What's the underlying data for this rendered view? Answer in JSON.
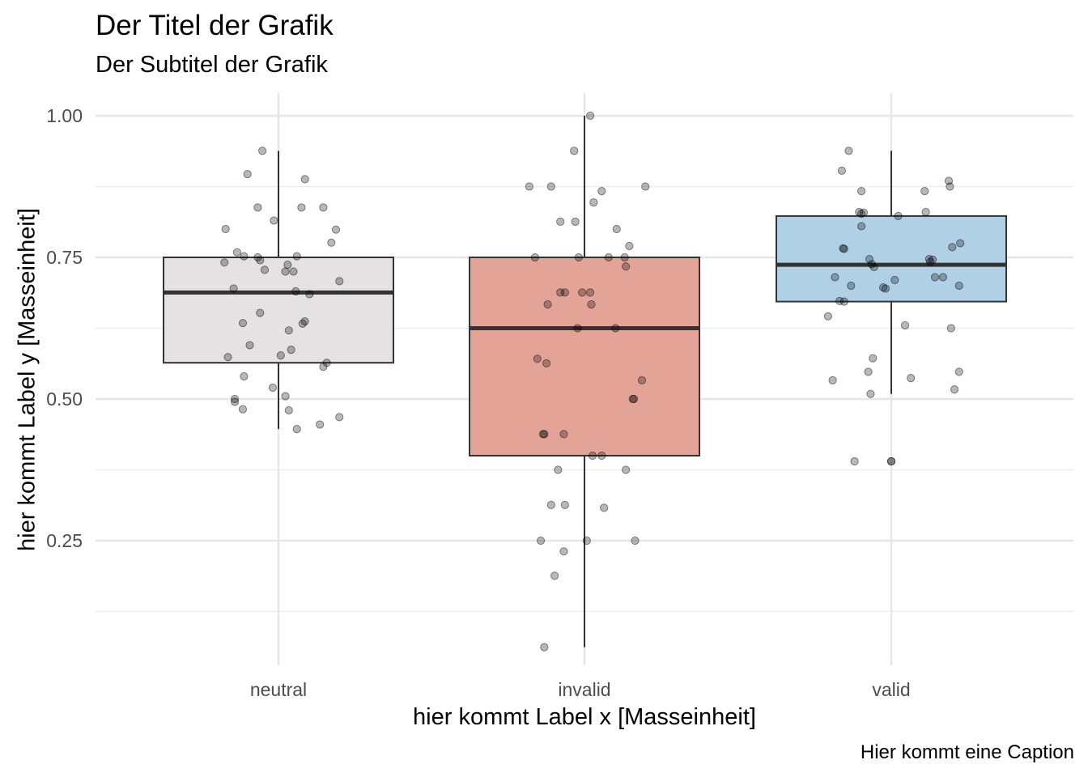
{
  "chart_data": {
    "type": "boxplot",
    "title": "Der Titel der Grafik",
    "subtitle": "Der Subtitel der Grafik",
    "xlabel": "hier kommt Label x [Masseinheit]",
    "ylabel": "hier kommt Label y [Masseinheit]",
    "caption": "Hier kommt eine Caption",
    "categories": [
      "neutral",
      "invalid",
      "valid"
    ],
    "ylim": [
      0.03,
      1.04
    ],
    "yticks": [
      0.25,
      0.5,
      0.75,
      1.0
    ],
    "ytick_labels": [
      "0.25",
      "0.50",
      "0.75",
      "1.00"
    ],
    "grid": true,
    "boxes": [
      {
        "category": "neutral",
        "whisker_low": 0.447,
        "q1": 0.564,
        "median": 0.688,
        "q3": 0.75,
        "whisker_high": 0.938,
        "fill": "#e4e2e2"
      },
      {
        "category": "invalid",
        "whisker_low": 0.062,
        "q1": 0.4,
        "median": 0.625,
        "q3": 0.75,
        "whisker_high": 1.0,
        "fill": "#e3a497"
      },
      {
        "category": "valid",
        "whisker_low": 0.509,
        "q1": 0.672,
        "median": 0.737,
        "q3": 0.823,
        "whisker_high": 0.938,
        "fill": "#b0d0e6"
      }
    ],
    "points": [
      {
        "category": "neutral",
        "jitter": -0.14,
        "y": 0.938
      },
      {
        "category": "neutral",
        "jitter": -0.27,
        "y": 0.897
      },
      {
        "category": "neutral",
        "jitter": 0.23,
        "y": 0.888
      },
      {
        "category": "neutral",
        "jitter": -0.18,
        "y": 0.838
      },
      {
        "category": "neutral",
        "jitter": 0.2,
        "y": 0.838
      },
      {
        "category": "neutral",
        "jitter": 0.39,
        "y": 0.838
      },
      {
        "category": "neutral",
        "jitter": -0.04,
        "y": 0.815
      },
      {
        "category": "neutral",
        "jitter": -0.46,
        "y": 0.8
      },
      {
        "category": "neutral",
        "jitter": 0.5,
        "y": 0.799
      },
      {
        "category": "neutral",
        "jitter": 0.46,
        "y": 0.776
      },
      {
        "category": "neutral",
        "jitter": -0.36,
        "y": 0.759
      },
      {
        "category": "neutral",
        "jitter": -0.3,
        "y": 0.752
      },
      {
        "category": "neutral",
        "jitter": -0.18,
        "y": 0.75
      },
      {
        "category": "neutral",
        "jitter": -0.16,
        "y": 0.745
      },
      {
        "category": "neutral",
        "jitter": 0.16,
        "y": 0.752
      },
      {
        "category": "neutral",
        "jitter": -0.47,
        "y": 0.741
      },
      {
        "category": "neutral",
        "jitter": 0.08,
        "y": 0.737
      },
      {
        "category": "neutral",
        "jitter": -0.12,
        "y": 0.728
      },
      {
        "category": "neutral",
        "jitter": 0.06,
        "y": 0.725
      },
      {
        "category": "neutral",
        "jitter": 0.13,
        "y": 0.725
      },
      {
        "category": "neutral",
        "jitter": 0.53,
        "y": 0.708
      },
      {
        "category": "neutral",
        "jitter": -0.39,
        "y": 0.695
      },
      {
        "category": "neutral",
        "jitter": 0.15,
        "y": 0.69
      },
      {
        "category": "neutral",
        "jitter": 0.27,
        "y": 0.685
      },
      {
        "category": "neutral",
        "jitter": -0.16,
        "y": 0.652
      },
      {
        "category": "neutral",
        "jitter": 0.23,
        "y": 0.637
      },
      {
        "category": "neutral",
        "jitter": 0.21,
        "y": 0.633
      },
      {
        "category": "neutral",
        "jitter": -0.31,
        "y": 0.634
      },
      {
        "category": "neutral",
        "jitter": 0.09,
        "y": 0.621
      },
      {
        "category": "neutral",
        "jitter": -0.25,
        "y": 0.595
      },
      {
        "category": "neutral",
        "jitter": 0.11,
        "y": 0.587
      },
      {
        "category": "neutral",
        "jitter": 0.02,
        "y": 0.577
      },
      {
        "category": "neutral",
        "jitter": -0.44,
        "y": 0.574
      },
      {
        "category": "neutral",
        "jitter": 0.42,
        "y": 0.564
      },
      {
        "category": "neutral",
        "jitter": 0.39,
        "y": 0.557
      },
      {
        "category": "neutral",
        "jitter": -0.3,
        "y": 0.54
      },
      {
        "category": "neutral",
        "jitter": -0.05,
        "y": 0.52
      },
      {
        "category": "neutral",
        "jitter": 0.06,
        "y": 0.505
      },
      {
        "category": "neutral",
        "jitter": -0.38,
        "y": 0.5
      },
      {
        "category": "neutral",
        "jitter": -0.38,
        "y": 0.495
      },
      {
        "category": "neutral",
        "jitter": -0.31,
        "y": 0.482
      },
      {
        "category": "neutral",
        "jitter": 0.09,
        "y": 0.48
      },
      {
        "category": "neutral",
        "jitter": 0.53,
        "y": 0.468
      },
      {
        "category": "neutral",
        "jitter": 0.36,
        "y": 0.455
      },
      {
        "category": "neutral",
        "jitter": 0.16,
        "y": 0.447
      },
      {
        "category": "invalid",
        "jitter": 0.05,
        "y": 1.0
      },
      {
        "category": "invalid",
        "jitter": -0.09,
        "y": 0.938
      },
      {
        "category": "invalid",
        "jitter": -0.48,
        "y": 0.875
      },
      {
        "category": "invalid",
        "jitter": -0.29,
        "y": 0.875
      },
      {
        "category": "invalid",
        "jitter": 0.53,
        "y": 0.875
      },
      {
        "category": "invalid",
        "jitter": 0.15,
        "y": 0.867
      },
      {
        "category": "invalid",
        "jitter": 0.08,
        "y": 0.847
      },
      {
        "category": "invalid",
        "jitter": -0.21,
        "y": 0.813
      },
      {
        "category": "invalid",
        "jitter": -0.08,
        "y": 0.813
      },
      {
        "category": "invalid",
        "jitter": 0.28,
        "y": 0.8
      },
      {
        "category": "invalid",
        "jitter": 0.39,
        "y": 0.77
      },
      {
        "category": "invalid",
        "jitter": -0.43,
        "y": 0.75
      },
      {
        "category": "invalid",
        "jitter": -0.05,
        "y": 0.75
      },
      {
        "category": "invalid",
        "jitter": 0.21,
        "y": 0.75
      },
      {
        "category": "invalid",
        "jitter": 0.35,
        "y": 0.75
      },
      {
        "category": "invalid",
        "jitter": 0.36,
        "y": 0.734
      },
      {
        "category": "invalid",
        "jitter": -0.21,
        "y": 0.688
      },
      {
        "category": "invalid",
        "jitter": -0.17,
        "y": 0.688
      },
      {
        "category": "invalid",
        "jitter": -0.02,
        "y": 0.688
      },
      {
        "category": "invalid",
        "jitter": 0.05,
        "y": 0.688
      },
      {
        "category": "invalid",
        "jitter": -0.32,
        "y": 0.667
      },
      {
        "category": "invalid",
        "jitter": 0.06,
        "y": 0.667
      },
      {
        "category": "invalid",
        "jitter": -0.06,
        "y": 0.625
      },
      {
        "category": "invalid",
        "jitter": 0.27,
        "y": 0.625
      },
      {
        "category": "invalid",
        "jitter": -0.41,
        "y": 0.571
      },
      {
        "category": "invalid",
        "jitter": -0.33,
        "y": 0.563
      },
      {
        "category": "invalid",
        "jitter": 0.5,
        "y": 0.533
      },
      {
        "category": "invalid",
        "jitter": 0.42,
        "y": 0.5
      },
      {
        "category": "invalid",
        "jitter": 0.43,
        "y": 0.5
      },
      {
        "category": "invalid",
        "jitter": -0.36,
        "y": 0.438
      },
      {
        "category": "invalid",
        "jitter": -0.35,
        "y": 0.438
      },
      {
        "category": "invalid",
        "jitter": -0.18,
        "y": 0.438
      },
      {
        "category": "invalid",
        "jitter": 0.07,
        "y": 0.4
      },
      {
        "category": "invalid",
        "jitter": 0.15,
        "y": 0.4
      },
      {
        "category": "invalid",
        "jitter": 0.36,
        "y": 0.375
      },
      {
        "category": "invalid",
        "jitter": -0.23,
        "y": 0.375
      },
      {
        "category": "invalid",
        "jitter": -0.29,
        "y": 0.313
      },
      {
        "category": "invalid",
        "jitter": -0.17,
        "y": 0.313
      },
      {
        "category": "invalid",
        "jitter": 0.17,
        "y": 0.308
      },
      {
        "category": "invalid",
        "jitter": -0.38,
        "y": 0.25
      },
      {
        "category": "invalid",
        "jitter": 0.02,
        "y": 0.25
      },
      {
        "category": "invalid",
        "jitter": 0.44,
        "y": 0.25
      },
      {
        "category": "invalid",
        "jitter": -0.18,
        "y": 0.231
      },
      {
        "category": "invalid",
        "jitter": -0.26,
        "y": 0.188
      },
      {
        "category": "invalid",
        "jitter": -0.35,
        "y": 0.062
      },
      {
        "category": "valid",
        "jitter": -0.37,
        "y": 0.938
      },
      {
        "category": "valid",
        "jitter": -0.43,
        "y": 0.903
      },
      {
        "category": "valid",
        "jitter": 0.5,
        "y": 0.885
      },
      {
        "category": "valid",
        "jitter": 0.51,
        "y": 0.875
      },
      {
        "category": "valid",
        "jitter": 0.29,
        "y": 0.867
      },
      {
        "category": "valid",
        "jitter": -0.26,
        "y": 0.867
      },
      {
        "category": "valid",
        "jitter": -0.28,
        "y": 0.83
      },
      {
        "category": "valid",
        "jitter": -0.26,
        "y": 0.827
      },
      {
        "category": "valid",
        "jitter": -0.24,
        "y": 0.829
      },
      {
        "category": "valid",
        "jitter": 0.3,
        "y": 0.83
      },
      {
        "category": "valid",
        "jitter": 0.06,
        "y": 0.823
      },
      {
        "category": "valid",
        "jitter": -0.26,
        "y": 0.805
      },
      {
        "category": "valid",
        "jitter": 0.6,
        "y": 0.775
      },
      {
        "category": "valid",
        "jitter": -0.42,
        "y": 0.766
      },
      {
        "category": "valid",
        "jitter": -0.41,
        "y": 0.765
      },
      {
        "category": "valid",
        "jitter": 0.53,
        "y": 0.768
      },
      {
        "category": "valid",
        "jitter": -0.19,
        "y": 0.747
      },
      {
        "category": "valid",
        "jitter": 0.33,
        "y": 0.747
      },
      {
        "category": "valid",
        "jitter": 0.36,
        "y": 0.746
      },
      {
        "category": "valid",
        "jitter": -0.17,
        "y": 0.738
      },
      {
        "category": "valid",
        "jitter": 0.34,
        "y": 0.742
      },
      {
        "category": "valid",
        "jitter": -0.15,
        "y": 0.733
      },
      {
        "category": "valid",
        "jitter": -0.49,
        "y": 0.715
      },
      {
        "category": "valid",
        "jitter": 0.38,
        "y": 0.715
      },
      {
        "category": "valid",
        "jitter": 0.45,
        "y": 0.715
      },
      {
        "category": "valid",
        "jitter": 0.03,
        "y": 0.71
      },
      {
        "category": "valid",
        "jitter": -0.35,
        "y": 0.7
      },
      {
        "category": "valid",
        "jitter": -0.07,
        "y": 0.697
      },
      {
        "category": "valid",
        "jitter": -0.05,
        "y": 0.695
      },
      {
        "category": "valid",
        "jitter": 0.59,
        "y": 0.7
      },
      {
        "category": "valid",
        "jitter": -0.45,
        "y": 0.673
      },
      {
        "category": "valid",
        "jitter": -0.41,
        "y": 0.672
      },
      {
        "category": "valid",
        "jitter": -0.55,
        "y": 0.646
      },
      {
        "category": "valid",
        "jitter": 0.12,
        "y": 0.63
      },
      {
        "category": "valid",
        "jitter": 0.52,
        "y": 0.625
      },
      {
        "category": "valid",
        "jitter": -0.16,
        "y": 0.572
      },
      {
        "category": "valid",
        "jitter": -0.2,
        "y": 0.548
      },
      {
        "category": "valid",
        "jitter": 0.59,
        "y": 0.548
      },
      {
        "category": "valid",
        "jitter": 0.17,
        "y": 0.537
      },
      {
        "category": "valid",
        "jitter": -0.51,
        "y": 0.533
      },
      {
        "category": "valid",
        "jitter": 0.55,
        "y": 0.517
      },
      {
        "category": "valid",
        "jitter": -0.18,
        "y": 0.509
      },
      {
        "category": "valid",
        "jitter": -0.32,
        "y": 0.39
      },
      {
        "category": "valid",
        "jitter": 0.0,
        "y": 0.39
      },
      {
        "category": "valid",
        "jitter": 0.0,
        "y": 0.39
      }
    ]
  }
}
